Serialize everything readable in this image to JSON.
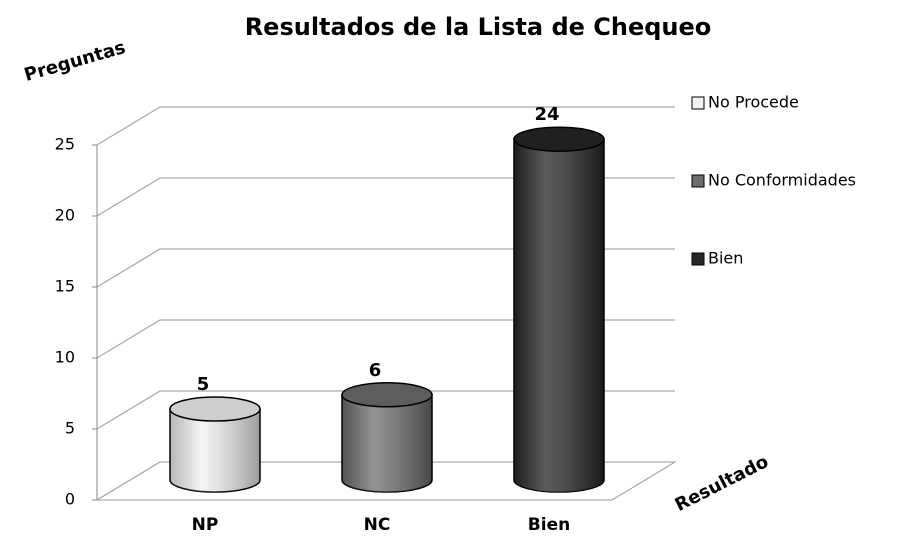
{
  "chart_data": {
    "type": "bar3d",
    "title": "Resultados de la Lista de Chequeo",
    "y_label": "Preguntas",
    "x_label": "Resultado",
    "categories": [
      "NP",
      "NC",
      "Bien"
    ],
    "series": [
      {
        "name": "No Procede",
        "color": "#f2f2f2",
        "values": [
          5,
          null,
          null
        ]
      },
      {
        "name": "No Conformidades",
        "color": "#6e6e6e",
        "values": [
          null,
          6,
          null
        ]
      },
      {
        "name": "Bien",
        "color": "#262626",
        "values": [
          null,
          null,
          24
        ]
      }
    ],
    "ylim": [
      0,
      25
    ],
    "yticks": [
      0,
      5,
      10,
      15,
      20,
      25
    ],
    "grid": true,
    "legend": "right"
  }
}
